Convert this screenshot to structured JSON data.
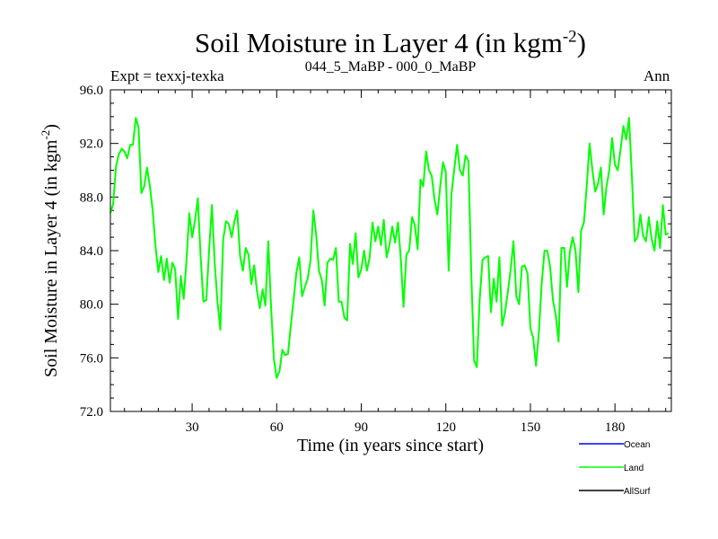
{
  "chart_data": {
    "type": "line",
    "title": "Soil Moisture in Layer 4 (in kgm",
    "title_superscript": "-2",
    "title_close": ")",
    "left_label": "Expt = texxj-texka",
    "center_label": "044_5_MaBP - 000_0_MaBP",
    "right_label": "Ann",
    "xlabel": "Time (in years since start)",
    "ylabel": "Soil Moisture in Layer 4 (in kgm",
    "ylabel_superscript": "-2",
    "ylabel_close": ")",
    "xlim": [
      1,
      200
    ],
    "ylim": [
      72.0,
      96.0
    ],
    "x_ticks": [
      30,
      60,
      90,
      120,
      150,
      180
    ],
    "x_tick_labels": [
      "30",
      "60",
      "90",
      "120",
      "150",
      "180"
    ],
    "y_ticks": [
      72,
      76,
      80,
      84,
      88,
      92,
      96
    ],
    "y_tick_labels": [
      "72.0",
      "76.0",
      "80.0",
      "84.0",
      "88.0",
      "92.0",
      "96.0"
    ],
    "legend": [
      {
        "name": "Ocean",
        "color": "#0000ff"
      },
      {
        "name": "Land",
        "color": "#00ff00"
      },
      {
        "name": "AllSurf",
        "color": "#000000"
      }
    ],
    "series": [
      {
        "name": "Land",
        "color": "#00ff00",
        "x_start": 1,
        "x_step": 1,
        "values": [
          86.8,
          87.5,
          90.3,
          91.2,
          91.6,
          91.4,
          90.9,
          91.9,
          91.9,
          93.9,
          93.2,
          88.3,
          88.8,
          90.2,
          88.8,
          87.0,
          84.3,
          82.4,
          83.6,
          81.8,
          83.4,
          81.6,
          83.1,
          82.6,
          78.9,
          82.1,
          80.4,
          83.3,
          86.8,
          85.0,
          86.2,
          87.9,
          83.6,
          80.2,
          80.3,
          83.9,
          87.4,
          83.1,
          80.2,
          78.1,
          84.8,
          86.2,
          86.0,
          85.0,
          86.2,
          87.0,
          83.6,
          82.5,
          84.2,
          83.7,
          81.5,
          82.9,
          81.0,
          79.7,
          81.1,
          79.9,
          84.7,
          79.8,
          75.9,
          74.5,
          75.0,
          76.6,
          76.2,
          76.3,
          78.4,
          80.3,
          82.4,
          83.5,
          80.6,
          81.3,
          81.9,
          83.3,
          87.0,
          85.2,
          82.5,
          81.8,
          79.9,
          83.1,
          83.4,
          83.3,
          84.2,
          80.2,
          80.2,
          79.0,
          78.8,
          84.5,
          83.0,
          85.3,
          82.0,
          82.6,
          84.0,
          82.5,
          83.5,
          86.1,
          84.7,
          85.8,
          84.4,
          86.3,
          83.5,
          84.4,
          85.8,
          84.6,
          86.1,
          83.5,
          79.8,
          83.7,
          84.0,
          86.5,
          85.9,
          84.1,
          89.3,
          88.8,
          91.4,
          90.0,
          89.6,
          87.8,
          86.7,
          88.8,
          90.6,
          89.9,
          82.5,
          88.2,
          90.1,
          91.9,
          90.0,
          89.6,
          91.1,
          90.7,
          82.5,
          75.8,
          75.3,
          80.3,
          83.3,
          83.5,
          83.6,
          79.4,
          81.9,
          80.2,
          83.5,
          78.4,
          79.4,
          80.9,
          82.6,
          84.7,
          80.6,
          80.0,
          82.8,
          82.9,
          82.3,
          78.2,
          77.5,
          75.4,
          77.9,
          81.5,
          84.0,
          84.0,
          82.8,
          80.3,
          79.2,
          77.2,
          84.2,
          84.2,
          81.3,
          83.9,
          85.0,
          84.0,
          80.9,
          85.5,
          86.1,
          88.9,
          92.0,
          90.0,
          88.4,
          89.0,
          90.2,
          86.7,
          88.8,
          90.0,
          92.4,
          90.4,
          90.0,
          91.6,
          93.3,
          92.3,
          93.9,
          89.6,
          84.7,
          85.0,
          86.7,
          85.1,
          84.7,
          86.5,
          84.9,
          84.0,
          86.2,
          84.2,
          87.4,
          85.2,
          85.3
        ]
      }
    ]
  }
}
